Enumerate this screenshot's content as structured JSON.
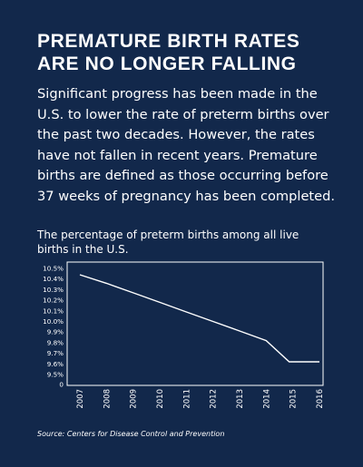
{
  "headline": "PREMATURE BIRTH RATES ARE NO LONGER FALLING",
  "body_text": "Significant progress has been made in the U.S. to lower the rate of preterm births over the past two decades. However, the rates have not fallen in recent years. Premature births are defined as those occurring before 37 weeks of pregnancy has been completed.",
  "chart_caption": "The percentage of preterm births among all live births in the U.S.",
  "source": "Source: Centers for Disease Control and Prevention",
  "colors": {
    "background": "#12284b",
    "line": "#ffffff"
  },
  "chart_data": {
    "type": "line",
    "title": "",
    "xlabel": "",
    "ylabel": "",
    "x": [
      "2007",
      "2008",
      "2009",
      "2010",
      "2011",
      "2012",
      "2013",
      "2014",
      "2015",
      "2016"
    ],
    "series": [
      {
        "values": [
          10.44,
          10.36,
          10.27,
          10.18,
          10.09,
          10.0,
          9.91,
          9.82,
          9.62,
          9.62
        ]
      }
    ],
    "y_ticks": [
      "0",
      "9.5%",
      "9.6%",
      "9.7%",
      "9.8%",
      "9.9%",
      "10.0%",
      "10.1%",
      "10.2%",
      "10.3%",
      "10.4%",
      "10.5%"
    ],
    "ylim": [
      9.5,
      10.5
    ],
    "y_axis_break": true,
    "grid": false,
    "legend": "none"
  }
}
